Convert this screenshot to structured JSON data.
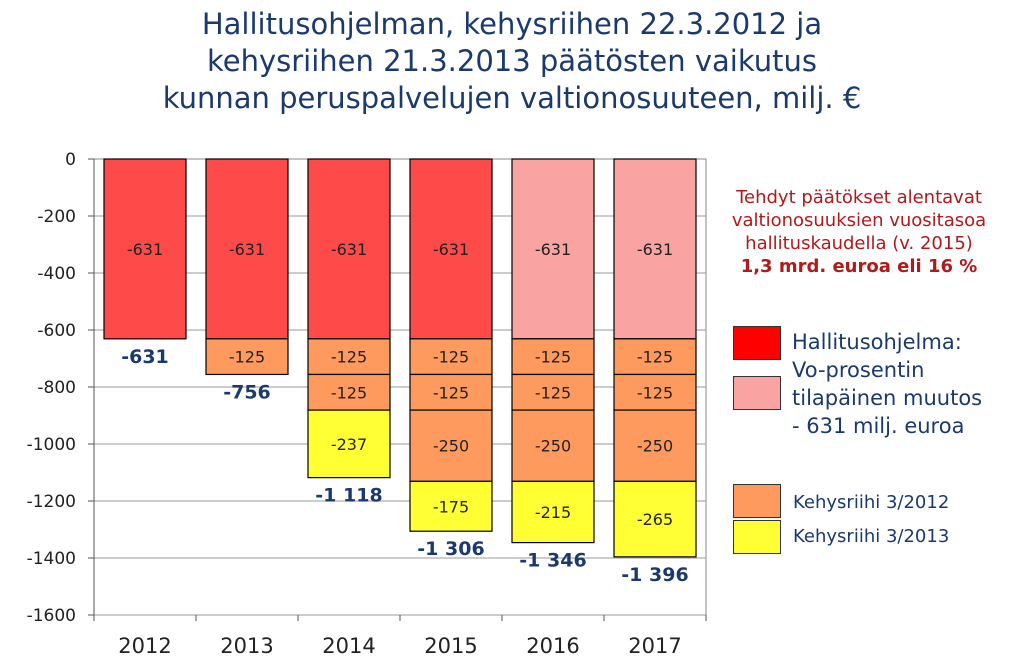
{
  "title_lines": [
    "Hallitusohjelman, kehysriihen 22.3.2012 ja",
    "kehysriihen 21.3.2013 päätösten vaikutus",
    "kunnan peruspalvelujen valtionosuuteen, milj. €"
  ],
  "note": {
    "lines": [
      "Tehdyt päätökset  alentavat",
      "valtionosuuksien vuositasoa",
      "hallituskaudella (v. 2015)"
    ],
    "bold_line": "1,3 mrd. euroa eli 16 %"
  },
  "legend": {
    "hallitusohjelma_label": "Hallitusohjelma:",
    "vo_lines": [
      "Vo-prosentin",
      "tilapäinen muutos",
      "- 631 milj. euroa"
    ],
    "kehysriihi2012_label": "Kehysriihi 3/2012",
    "kehysriihi2013_label": "Kehysriihi 3/2013"
  },
  "colors": {
    "hallitusohjelma": "#ff4a4a",
    "vo_temporary": "#f9a3a3",
    "kehysriihi2012": "#ff9a5e",
    "kehysriihi2013": "#ffff33",
    "text_blue": "#1a3a6e",
    "note_red": "#b01a1a"
  },
  "chart_data": {
    "type": "bar",
    "stacked": true,
    "categories": [
      "2012",
      "2013",
      "2014",
      "2015",
      "2016",
      "2017"
    ],
    "ylim": [
      -1600,
      0
    ],
    "yticks": [
      0,
      -200,
      -400,
      -600,
      -800,
      -1000,
      -1200,
      -1400,
      -1600
    ],
    "grid": true,
    "segments": [
      [
        {
          "value": -631,
          "label": "-631",
          "color": "hallitusohjelma"
        }
      ],
      [
        {
          "value": -631,
          "label": "-631",
          "color": "hallitusohjelma"
        },
        {
          "value": -125,
          "label": "-125",
          "color": "kehysriihi2012"
        }
      ],
      [
        {
          "value": -631,
          "label": "-631",
          "color": "hallitusohjelma"
        },
        {
          "value": -125,
          "label": "-125",
          "color": "kehysriihi2012"
        },
        {
          "value": -125,
          "label": "-125",
          "color": "kehysriihi2012"
        },
        {
          "value": -237,
          "label": "-237",
          "color": "kehysriihi2013"
        }
      ],
      [
        {
          "value": -631,
          "label": "-631",
          "color": "hallitusohjelma"
        },
        {
          "value": -125,
          "label": "-125",
          "color": "kehysriihi2012"
        },
        {
          "value": -125,
          "label": "-125",
          "color": "kehysriihi2012"
        },
        {
          "value": -250,
          "label": "-250",
          "color": "kehysriihi2012"
        },
        {
          "value": -175,
          "label": "-175",
          "color": "kehysriihi2013"
        }
      ],
      [
        {
          "value": -631,
          "label": "-631",
          "color": "vo_temporary"
        },
        {
          "value": -125,
          "label": "-125",
          "color": "kehysriihi2012"
        },
        {
          "value": -125,
          "label": "-125",
          "color": "kehysriihi2012"
        },
        {
          "value": -250,
          "label": "-250",
          "color": "kehysriihi2012"
        },
        {
          "value": -215,
          "label": "-215",
          "color": "kehysriihi2013"
        }
      ],
      [
        {
          "value": -631,
          "label": "-631",
          "color": "vo_temporary"
        },
        {
          "value": -125,
          "label": "-125",
          "color": "kehysriihi2012"
        },
        {
          "value": -125,
          "label": "-125",
          "color": "kehysriihi2012"
        },
        {
          "value": -250,
          "label": "-250",
          "color": "kehysriihi2012"
        },
        {
          "value": -265,
          "label": "-265",
          "color": "kehysriihi2013"
        }
      ]
    ],
    "totals": [
      {
        "value": -631,
        "label": "-631"
      },
      {
        "value": -756,
        "label": "-756"
      },
      {
        "value": -1118,
        "label": "-1 118"
      },
      {
        "value": -1306,
        "label": "-1 306"
      },
      {
        "value": -1346,
        "label": "-1 346"
      },
      {
        "value": -1396,
        "label": "-1 396"
      }
    ]
  }
}
